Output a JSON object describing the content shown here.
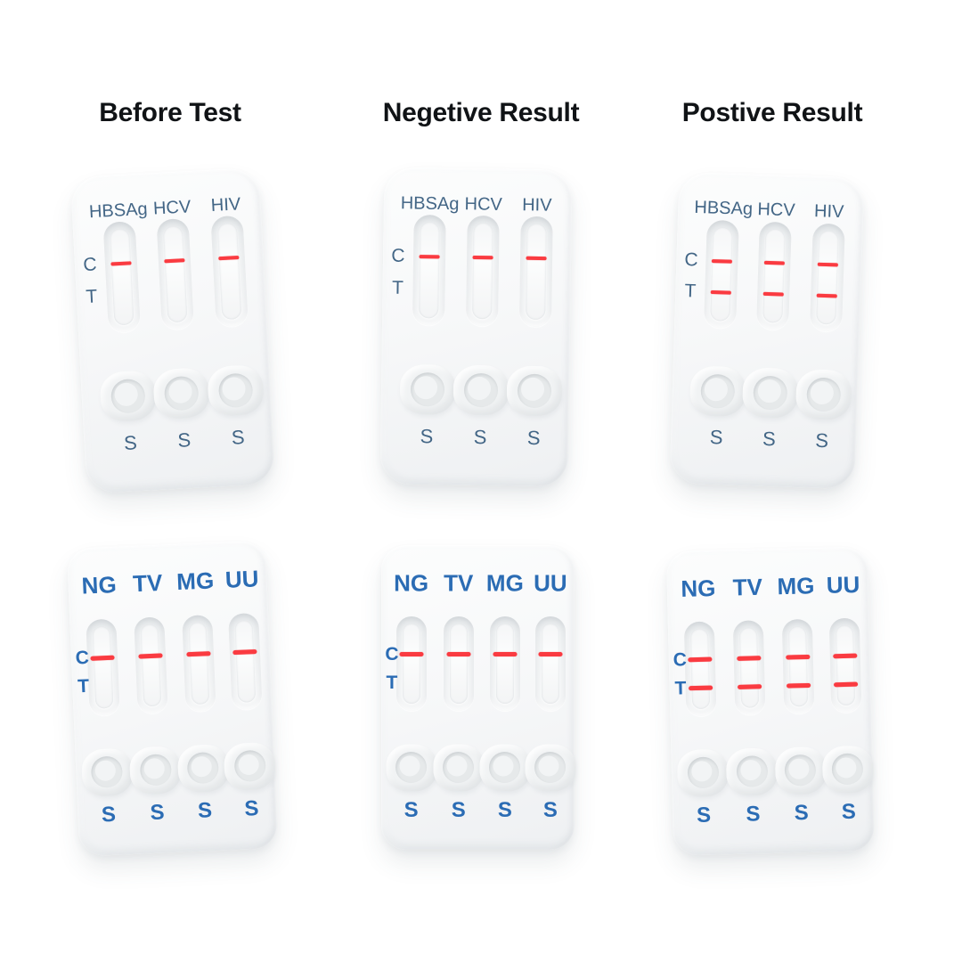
{
  "titles": [
    "Before Test",
    "Negetive Result",
    "Postive Result"
  ],
  "colors": {
    "background": "#ffffff",
    "title_text": "#101316",
    "panel3_text_slate_blue": "#436686",
    "panel4_text_blue": "#2b6cb4",
    "test_line_red": "#fa3b41",
    "cassette_body": "#f7f8f9"
  },
  "cassette_types": {
    "hepatitis_hiv_panel": {
      "labels": [
        "HBSAg",
        "HCV",
        "HIV"
      ],
      "control_line_label": "C",
      "test_line_label": "T",
      "sample_well_label": "S"
    },
    "sti_panel": {
      "labels": [
        "NG",
        "TV",
        "MG",
        "UU"
      ],
      "control_line_label": "C",
      "test_line_label": "T",
      "sample_well_label": "S"
    }
  },
  "cassettes": [
    {
      "id": "hepatitis-before-test",
      "type": "hepatitis_hiv_panel",
      "column": "Before Test",
      "visible_lines": [
        "C"
      ]
    },
    {
      "id": "hepatitis-negative-result",
      "type": "hepatitis_hiv_panel",
      "column": "Negetive Result",
      "visible_lines": [
        "C"
      ]
    },
    {
      "id": "hepatitis-positive-result",
      "type": "hepatitis_hiv_panel",
      "column": "Postive Result",
      "visible_lines": [
        "C",
        "T"
      ]
    },
    {
      "id": "sti-before-test",
      "type": "sti_panel",
      "column": "Before Test",
      "visible_lines": [
        "C"
      ]
    },
    {
      "id": "sti-negative-result",
      "type": "sti_panel",
      "column": "Negetive Result",
      "visible_lines": [
        "C"
      ]
    },
    {
      "id": "sti-positive-result",
      "type": "sti_panel",
      "column": "Postive Result",
      "visible_lines": [
        "C",
        "T"
      ]
    }
  ]
}
